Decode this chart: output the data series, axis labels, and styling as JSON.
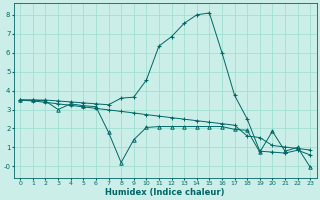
{
  "xlabel": "Humidex (Indice chaleur)",
  "bg_color": "#cceee8",
  "grid_color": "#99ddcc",
  "line_color": "#006666",
  "xlim": [
    -0.5,
    23.5
  ],
  "ylim": [
    -0.6,
    8.6
  ],
  "xticks": [
    0,
    1,
    2,
    3,
    4,
    5,
    6,
    7,
    8,
    9,
    10,
    11,
    12,
    13,
    14,
    15,
    16,
    17,
    18,
    19,
    20,
    21,
    22,
    23
  ],
  "yticks": [
    0,
    1,
    2,
    3,
    4,
    5,
    6,
    7,
    8
  ],
  "ytick_labels": [
    "-0",
    "1",
    "2",
    "3",
    "4",
    "5",
    "6",
    "7",
    "8"
  ],
  "line1_x": [
    0,
    1,
    2,
    3,
    4,
    5,
    6,
    7,
    8,
    9,
    10,
    11,
    12,
    13,
    14,
    15,
    16,
    17,
    18,
    19,
    20,
    21,
    22,
    23
  ],
  "line1_y": [
    3.5,
    3.5,
    3.5,
    3.45,
    3.4,
    3.35,
    3.3,
    3.25,
    3.6,
    3.65,
    4.55,
    6.35,
    6.85,
    7.55,
    8.0,
    8.1,
    6.0,
    3.75,
    2.5,
    0.8,
    0.75,
    0.7,
    0.85,
    0.6
  ],
  "line2_x": [
    0,
    1,
    2,
    3,
    4,
    5,
    6,
    7,
    8,
    9,
    10,
    11,
    12,
    13,
    14,
    15,
    16,
    17,
    18,
    19,
    20,
    21,
    22,
    23
  ],
  "line2_y": [
    3.5,
    3.5,
    3.45,
    3.0,
    3.3,
    3.2,
    3.15,
    1.8,
    0.2,
    1.4,
    2.05,
    2.1,
    2.1,
    2.1,
    2.1,
    2.1,
    2.1,
    1.95,
    1.9,
    0.75,
    1.85,
    0.8,
    1.0,
    -0.05
  ],
  "line3_x": [
    0,
    1,
    2,
    3,
    4,
    5,
    6,
    7,
    8,
    9,
    10,
    11,
    12,
    13,
    14,
    15,
    16,
    17,
    18,
    19,
    20,
    21,
    22,
    23
  ],
  "line3_y": [
    3.5,
    3.45,
    3.38,
    3.3,
    3.22,
    3.14,
    3.06,
    2.98,
    2.9,
    2.82,
    2.73,
    2.65,
    2.57,
    2.49,
    2.41,
    2.33,
    2.25,
    2.17,
    1.6,
    1.52,
    1.1,
    1.02,
    0.94,
    0.86
  ]
}
